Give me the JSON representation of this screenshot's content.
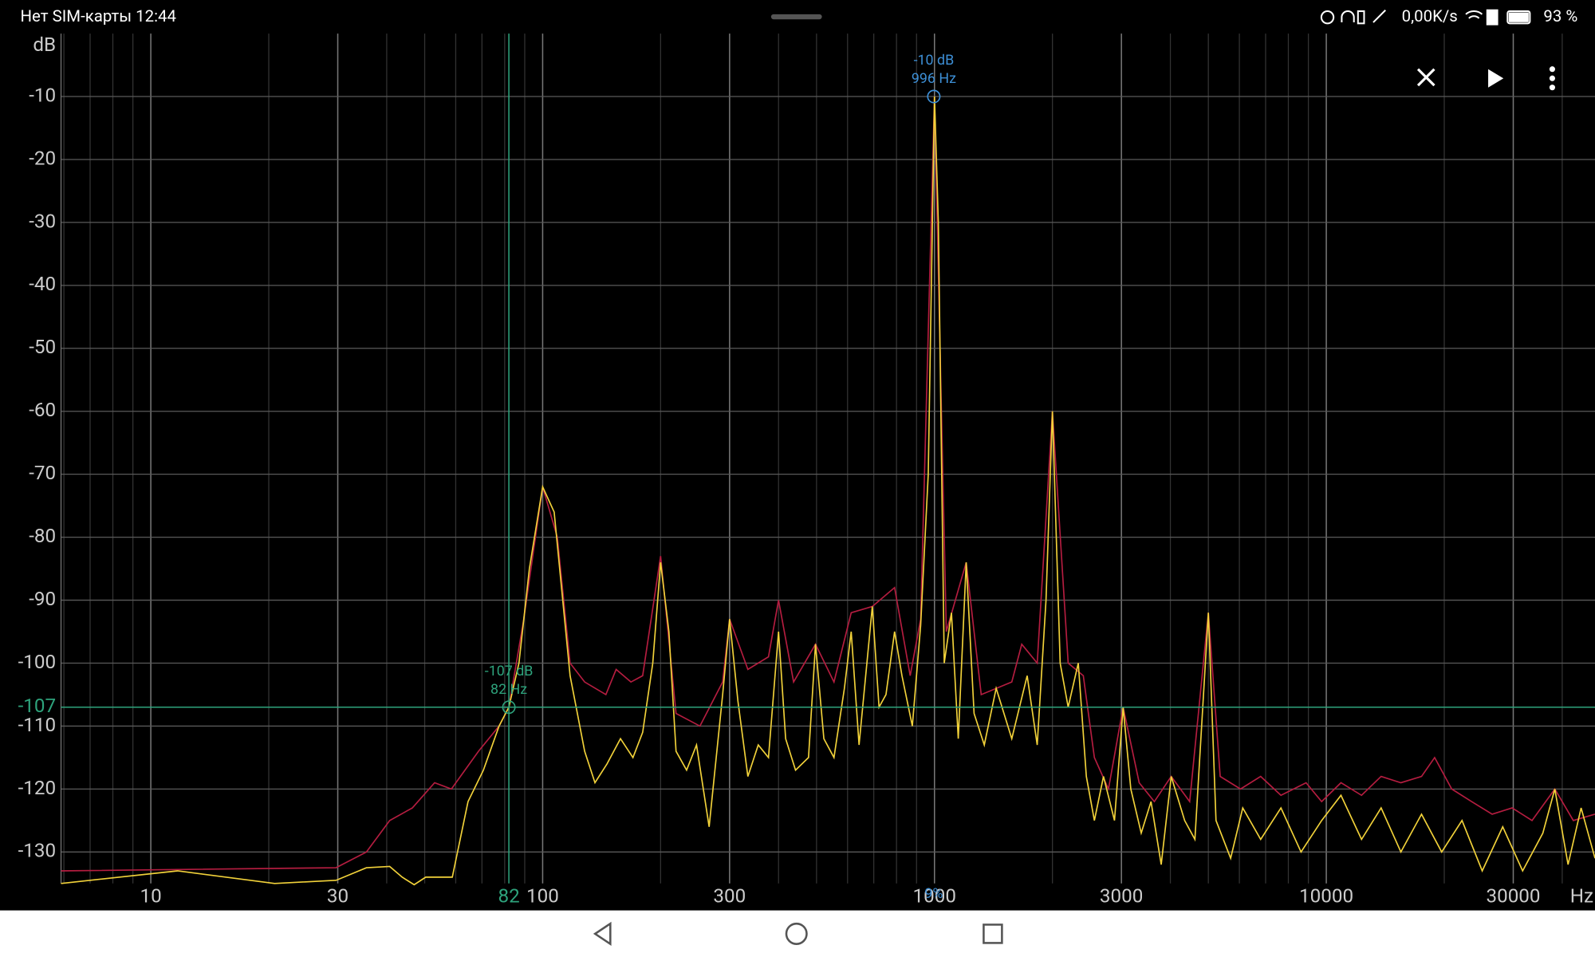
{
  "status": {
    "left": "Нет SIM-карты 12:44",
    "speed": "0,00K/s",
    "battery": "93 %"
  },
  "chart_data": {
    "type": "line",
    "y_unit": "dB",
    "x_unit": "Hz",
    "xscale": "log",
    "xlim": [
      5.9,
      48500
    ],
    "ylim": [
      -135,
      0
    ],
    "xticks": [
      10,
      30,
      100,
      300,
      1000,
      3000,
      10000,
      30000
    ],
    "xminor_ticks": [
      6,
      7,
      8,
      9,
      20,
      40,
      50,
      60,
      70,
      80,
      90,
      200,
      400,
      500,
      600,
      700,
      800,
      900,
      2000,
      4000,
      5000,
      6000,
      7000,
      8000,
      9000,
      20000,
      40000
    ],
    "yticks": [
      -10,
      -20,
      -30,
      -40,
      -50,
      -60,
      -70,
      -80,
      -90,
      -100,
      -110,
      -120,
      -130
    ],
    "series": [
      {
        "color": "#b51d40",
        "x": [
          5.9,
          29.7,
          35.5,
          40.7,
          46.5,
          53,
          58.5,
          68.6,
          77.4,
          82,
          89.5,
          100,
          109,
          117.5,
          128,
          145,
          154,
          168,
          180,
          200,
          219,
          252,
          288,
          300,
          334,
          377,
          400,
          437,
          497,
          554,
          613,
          694,
          791,
          867,
          922,
          1000,
          1072,
          1205,
          1316,
          1575,
          1670,
          1829,
          2000,
          2194,
          2398,
          2559,
          2780,
          3030,
          3330,
          3640,
          4020,
          4480,
          5000,
          5360,
          6040,
          6800,
          7660,
          8880,
          9730,
          10900,
          12300,
          13800,
          15500,
          17500,
          18900,
          20900,
          23500,
          26500,
          29800,
          33500,
          38300,
          42700,
          48500
        ],
        "values": [
          -133,
          -132.5,
          -130,
          -125,
          -123,
          -119,
          -120,
          -114,
          -110,
          -107,
          -93,
          -72,
          -80,
          -100,
          -103,
          -105,
          -101,
          -103,
          -102,
          -83,
          -108,
          -110,
          -103,
          -93,
          -101,
          -99,
          -90,
          -103,
          -97,
          -103,
          -92,
          -91,
          -88,
          -102,
          -93,
          -10,
          -95,
          -84,
          -105,
          -103,
          -97,
          -100,
          -60,
          -100,
          -102,
          -115,
          -120,
          -107,
          -119,
          -122,
          -118,
          -122,
          -92,
          -118,
          -120,
          -118,
          -121,
          -119,
          -122,
          -119,
          -121,
          -118,
          -119,
          -118,
          -115,
          -120,
          -122,
          -124,
          -123,
          -125,
          -120,
          -125,
          -124
        ]
      },
      {
        "color": "#f2d23a",
        "x": [
          5.9,
          11.7,
          20.7,
          29.7,
          35.5,
          40.7,
          43.8,
          47,
          50.3,
          58.8,
          64.5,
          70.6,
          77.4,
          82,
          87,
          92.5,
          100,
          107,
          117.5,
          128,
          136,
          146,
          158,
          170,
          180,
          191,
          200,
          210,
          219,
          233,
          247,
          266,
          288,
          300,
          315,
          334,
          355,
          377,
          400,
          417,
          442,
          477,
          497,
          522,
          554,
          589,
          613,
          642,
          694,
          722,
          752,
          791,
          826,
          878,
          922,
          964,
          1000,
          1023,
          1059,
          1105,
          1150,
          1205,
          1262,
          1340,
          1437,
          1575,
          1724,
          1829,
          1926,
          2000,
          2093,
          2194,
          2328,
          2441,
          2559,
          2700,
          2880,
          3030,
          3170,
          3370,
          3570,
          3790,
          4020,
          4350,
          4620,
          5000,
          5230,
          5700,
          6120,
          6800,
          7660,
          8620,
          9730,
          10900,
          12300,
          13800,
          15500,
          17500,
          19700,
          22200,
          25000,
          28200,
          31700,
          35700,
          38300,
          41400,
          44700,
          48500
        ],
        "values": [
          -135,
          -133,
          -135,
          -134.5,
          -132.5,
          -132.3,
          -134,
          -135.2,
          -134,
          -134,
          -122,
          -117,
          -110,
          -107,
          -100,
          -85,
          -72,
          -76,
          -102,
          -114,
          -119,
          -116,
          -112,
          -115,
          -111,
          -100,
          -84,
          -95,
          -114,
          -117,
          -113,
          -126,
          -105,
          -93,
          -106,
          -118,
          -113,
          -115,
          -95,
          -112,
          -117,
          -115,
          -97,
          -112,
          -115,
          -104,
          -95,
          -113,
          -91,
          -107,
          -105,
          -95,
          -102,
          -110,
          -94,
          -70,
          -10,
          -30,
          -100,
          -92,
          -112,
          -84,
          -108,
          -113,
          -104,
          -112,
          -102,
          -113,
          -90,
          -60,
          -100,
          -107,
          -100,
          -118,
          -125,
          -118,
          -125,
          -107,
          -120,
          -127,
          -122,
          -132,
          -118,
          -125,
          -128,
          -92,
          -125,
          -131,
          -123,
          -128,
          -123,
          -130,
          -125,
          -121,
          -128,
          -123,
          -130,
          -124,
          -130,
          -125,
          -133,
          -126,
          -133,
          -127,
          -120,
          -132,
          -123,
          -131
        ]
      }
    ],
    "cursors": [
      {
        "x": 996,
        "y": -10,
        "label_y": "-10 dB",
        "label_x": "996 Hz",
        "color": "#3d8fd6"
      },
      {
        "x": 82,
        "y": -107,
        "label_y": "-107 dB",
        "label_x": "82 Hz",
        "color": "#2ea37c"
      }
    ],
    "marker_label": "9%"
  }
}
